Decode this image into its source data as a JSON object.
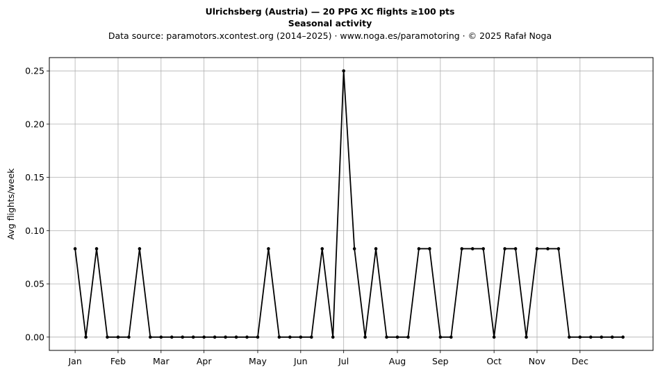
{
  "header": {
    "title": "Ulrichsberg (Austria)  —  20 PPG XC flights ≥100 pts",
    "subtitle": "Seasonal activity",
    "source": "Data source: paramotors.xcontest.org (2014–2025)  ·  www.noga.es/paramotoring  ·  © 2025 Rafał Noga"
  },
  "chart_data": {
    "type": "line",
    "title": "Ulrichsberg (Austria)  —  20 PPG XC flights ≥100 pts",
    "subtitle": "Seasonal activity",
    "xlabel": "",
    "ylabel": "Avg flights/week",
    "x": [
      1,
      2,
      3,
      4,
      5,
      6,
      7,
      8,
      9,
      10,
      11,
      12,
      13,
      14,
      15,
      16,
      17,
      18,
      19,
      20,
      21,
      22,
      23,
      24,
      25,
      26,
      27,
      28,
      29,
      30,
      31,
      32,
      33,
      34,
      35,
      36,
      37,
      38,
      39,
      40,
      41,
      42,
      43,
      44,
      45,
      46,
      47,
      48,
      49,
      50,
      51,
      52
    ],
    "series": [
      {
        "name": "",
        "color": "#000000",
        "values": [
          0.083,
          0,
          0.083,
          0,
          0,
          0,
          0.083,
          0,
          0,
          0,
          0,
          0,
          0,
          0,
          0,
          0,
          0,
          0,
          0.083,
          0,
          0,
          0,
          0,
          0.083,
          0,
          0.25,
          0.083,
          0,
          0.083,
          0,
          0,
          0,
          0.083,
          0.083,
          0,
          0,
          0.083,
          0.083,
          0.083,
          0,
          0.083,
          0.083,
          0,
          0.083,
          0.083,
          0.083,
          0,
          0,
          0,
          0,
          0,
          0
        ]
      }
    ],
    "xticks": [
      {
        "label": "Jan",
        "x": 1
      },
      {
        "label": "Feb",
        "x": 5
      },
      {
        "label": "Mar",
        "x": 9
      },
      {
        "label": "Apr",
        "x": 13
      },
      {
        "label": "May",
        "x": 18
      },
      {
        "label": "Jun",
        "x": 22
      },
      {
        "label": "Jul",
        "x": 26
      },
      {
        "label": "Aug",
        "x": 31
      },
      {
        "label": "Sep",
        "x": 35
      },
      {
        "label": "Oct",
        "x": 40
      },
      {
        "label": "Nov",
        "x": 44
      },
      {
        "label": "Dec",
        "x": 48
      }
    ],
    "yticks": [
      0.0,
      0.05,
      0.1,
      0.15,
      0.2,
      0.25
    ],
    "ytick_labels": [
      "0.00",
      "0.05",
      "0.10",
      "0.15",
      "0.20",
      "0.25"
    ],
    "xlim": [
      -1.4,
      54.8
    ],
    "ylim": [
      -0.0125,
      0.2625
    ],
    "grid": true,
    "legend": "none"
  }
}
